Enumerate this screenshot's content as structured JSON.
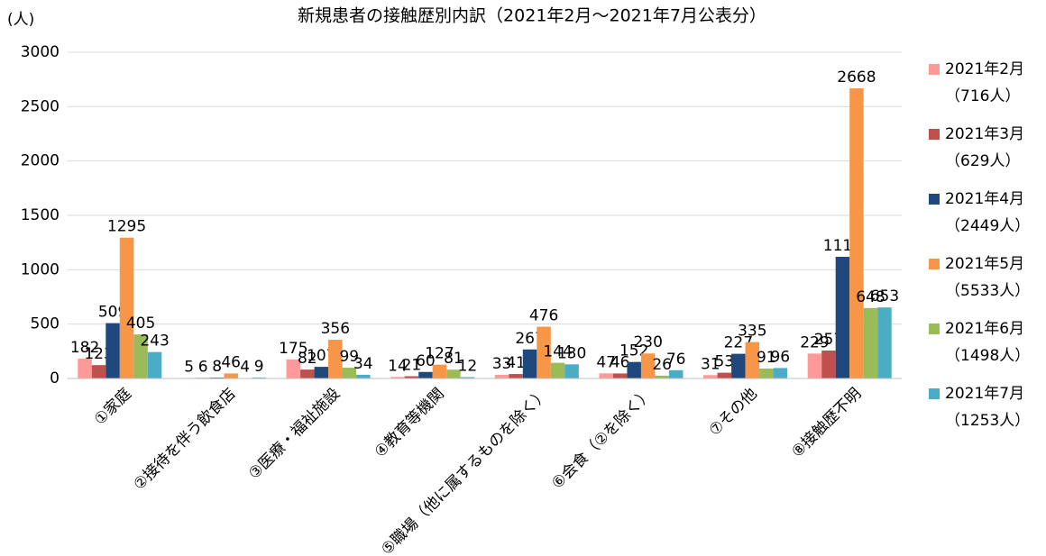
{
  "chart_data": {
    "type": "bar",
    "title": "新規患者の接触歴別内訳（2021年2月～2021年7月公表分）",
    "y_axis_label": "(人)",
    "categories": [
      "①家庭",
      "②接待を伴う飲食店",
      "③医療・福祉施設",
      "④教育等機関",
      "⑤職場（他に属するものを除く）",
      "⑥会食（②を除く）",
      "⑦その他",
      "⑧接触歴不明"
    ],
    "series": [
      {
        "name": "2021年2月（716人）",
        "color": "#ff9999",
        "values": [
          182,
          5,
          175,
          14,
          33,
          47,
          31,
          229
        ]
      },
      {
        "name": "2021年3月（629人）",
        "color": "#c0504d",
        "values": [
          123,
          6,
          82,
          21,
          41,
          46,
          53,
          257
        ]
      },
      {
        "name": "2021年4月（2449人）",
        "color": "#1f497d",
        "values": [
          509,
          8,
          107,
          60,
          267,
          152,
          227,
          1119
        ]
      },
      {
        "name": "2021年5月（5533人）",
        "color": "#f79646",
        "values": [
          1295,
          46,
          356,
          127,
          476,
          230,
          335,
          2668
        ]
      },
      {
        "name": "2021年6月（1498人）",
        "color": "#9bbb59",
        "values": [
          405,
          4,
          99,
          81,
          144,
          26,
          91,
          648
        ]
      },
      {
        "name": "2021年7月（1253人）",
        "color": "#4bacc6",
        "values": [
          243,
          9,
          34,
          12,
          130,
          76,
          96,
          653
        ]
      }
    ],
    "ylim": [
      0,
      3000
    ],
    "yticks": [
      0,
      500,
      1000,
      1500,
      2000,
      2500,
      3000
    ],
    "grid": true,
    "legend": "right"
  }
}
